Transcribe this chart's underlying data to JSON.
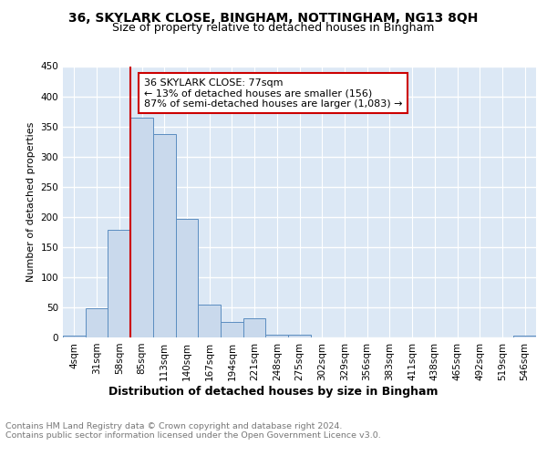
{
  "title1": "36, SKYLARK CLOSE, BINGHAM, NOTTINGHAM, NG13 8QH",
  "title2": "Size of property relative to detached houses in Bingham",
  "xlabel": "Distribution of detached houses by size in Bingham",
  "ylabel": "Number of detached properties",
  "bar_labels": [
    "4sqm",
    "31sqm",
    "58sqm",
    "85sqm",
    "113sqm",
    "140sqm",
    "167sqm",
    "194sqm",
    "221sqm",
    "248sqm",
    "275sqm",
    "302sqm",
    "329sqm",
    "356sqm",
    "383sqm",
    "411sqm",
    "438sqm",
    "465sqm",
    "492sqm",
    "519sqm",
    "546sqm"
  ],
  "bar_values": [
    3,
    48,
    179,
    365,
    338,
    197,
    54,
    26,
    32,
    5,
    5,
    0,
    0,
    0,
    0,
    0,
    0,
    0,
    0,
    0,
    3
  ],
  "bar_color": "#c9d9ec",
  "bar_edgecolor": "#5b8dc0",
  "vline_color": "#cc0000",
  "vline_x": 2.5,
  "annotation_text": "36 SKYLARK CLOSE: 77sqm\n← 13% of detached houses are smaller (156)\n87% of semi-detached houses are larger (1,083) →",
  "annotation_box_edgecolor": "#cc0000",
  "ylim": [
    0,
    450
  ],
  "yticks": [
    0,
    50,
    100,
    150,
    200,
    250,
    300,
    350,
    400,
    450
  ],
  "footer_text": "Contains HM Land Registry data © Crown copyright and database right 2024.\nContains public sector information licensed under the Open Government Licence v3.0.",
  "bg_color": "#dce8f5",
  "fig_bg_color": "#ffffff",
  "grid_color": "#ffffff",
  "title1_fontsize": 10,
  "title2_fontsize": 9,
  "xlabel_fontsize": 9,
  "ylabel_fontsize": 8,
  "tick_fontsize": 7.5,
  "footer_fontsize": 6.8,
  "annotation_fontsize": 8
}
